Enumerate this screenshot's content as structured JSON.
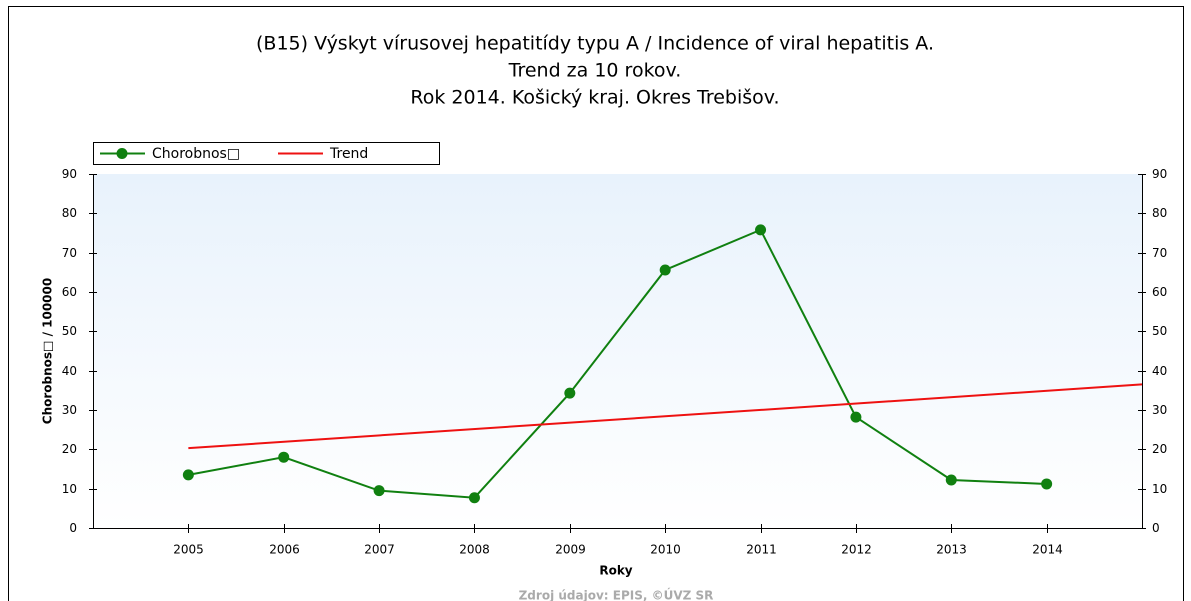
{
  "chart_data": {
    "type": "line",
    "title": [
      "(B15) Výskyt vírusovej hepatitídy typu A / Incidence of viral hepatitis A.",
      "Trend za 10 rokov.",
      "Rok 2014. Košický kraj. Okres Trebišov."
    ],
    "xlabel": "Roky",
    "ylabel": "Chorobnos□ / 100000",
    "source": "Zdroj údajov: EPIS, ©ÚVZ SR",
    "xlim": [
      2004,
      2015
    ],
    "xticks": [
      2005,
      2006,
      2007,
      2008,
      2009,
      2010,
      2011,
      2012,
      2013,
      2014
    ],
    "ylim": [
      0,
      90
    ],
    "yticks": [
      0,
      10,
      20,
      30,
      40,
      50,
      60,
      70,
      80,
      90
    ],
    "y2lim": [
      0,
      90
    ],
    "y2ticks": [
      0,
      10,
      20,
      30,
      40,
      50,
      60,
      70,
      80,
      90
    ],
    "series": [
      {
        "name": "Chorobnos□",
        "color": "#108010",
        "markers": true,
        "x": [
          2005,
          2006,
          2007,
          2008,
          2009,
          2010,
          2011,
          2012,
          2013,
          2014
        ],
        "values": [
          13.5,
          18.0,
          9.5,
          7.7,
          34.3,
          65.6,
          75.8,
          28.2,
          12.2,
          11.2
        ]
      },
      {
        "name": "Trend",
        "color": "#ee1111",
        "markers": false,
        "x": [
          2005,
          2015
        ],
        "values": [
          20.3,
          36.5
        ]
      }
    ]
  }
}
